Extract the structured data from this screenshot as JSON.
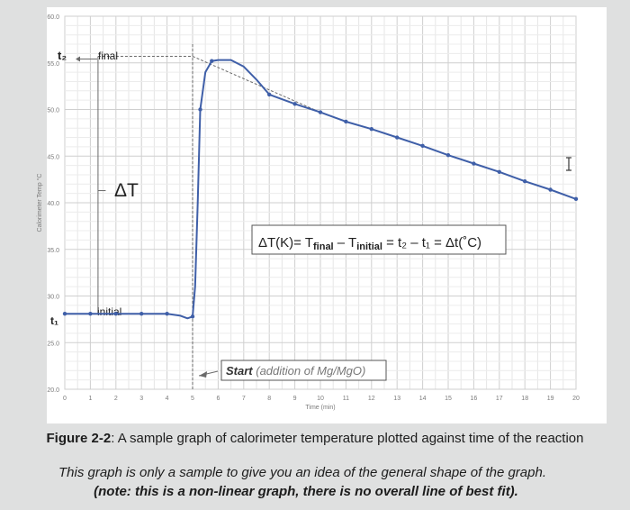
{
  "chart_data": {
    "type": "line",
    "title": "",
    "xlabel": "Time (min)",
    "ylabel": "Calorimeter Temp °C",
    "xlim": [
      0,
      20
    ],
    "ylim": [
      20,
      60
    ],
    "x_ticks": [
      "0",
      "1",
      "2",
      "3",
      "4",
      "5",
      "6",
      "7",
      "8",
      "9",
      "10",
      "11",
      "12",
      "13",
      "14",
      "15",
      "16",
      "17",
      "18",
      "19",
      "20"
    ],
    "y_ticks": [
      "20.0",
      "25.0",
      "30.0",
      "35.0",
      "40.0",
      "45.0",
      "50.0",
      "55.0",
      "60.0"
    ],
    "grid": true,
    "series": [
      {
        "color": "#3f5fa8",
        "x": [
          0,
          0.5,
          1,
          1.5,
          2,
          2.5,
          3,
          3.5,
          4,
          4.5,
          4.8,
          5.0,
          5.1,
          5.2,
          5.3,
          5.5,
          5.75,
          6.0,
          6.5,
          7.0,
          7.5,
          8,
          9,
          10,
          11,
          12,
          13,
          14,
          15,
          16,
          17,
          18,
          19,
          20
        ],
        "y": [
          28.1,
          28.1,
          28.1,
          28.1,
          28.1,
          28.1,
          28.1,
          28.1,
          28.1,
          27.9,
          27.6,
          27.8,
          31,
          40,
          50,
          54,
          55.2,
          55.3,
          55.3,
          54.6,
          53.2,
          51.6,
          50.6,
          49.7,
          48.7,
          47.9,
          47,
          46.1,
          45.1,
          44.2,
          43.3,
          42.3,
          41.4,
          40.4
        ],
        "markers_x": [
          0,
          1,
          2,
          3,
          4,
          5,
          5.3,
          5.75,
          8,
          9,
          10,
          11,
          12,
          13,
          14,
          15,
          16,
          17,
          18,
          19,
          20
        ]
      }
    ],
    "annotations": {
      "t2_label": "t₂",
      "t1_label": "t₁",
      "final_label": "final",
      "initial_label": "initial",
      "delta_t_label": "ΔT",
      "formula_prefix": "ΔT(K)= T",
      "formula_sub_final": "final",
      "formula_minus": " – T",
      "formula_sub_initial": "initial",
      "formula_rest": " = t₂ – t₁ = Δt(˚C)",
      "start_bold": "Start",
      "start_rest": " (addition of Mg/MgO)",
      "cursor_icon": "text-cursor-icon"
    }
  },
  "caption": {
    "label": "Figure 2-2",
    "text": ": A sample graph of calorimeter temperature plotted against time of the reaction",
    "note_line1": "This graph is only a sample to give you an idea of the general shape of the graph.",
    "note_line2": "(note: this is a non-linear graph, there is no overall line of best fit)."
  }
}
